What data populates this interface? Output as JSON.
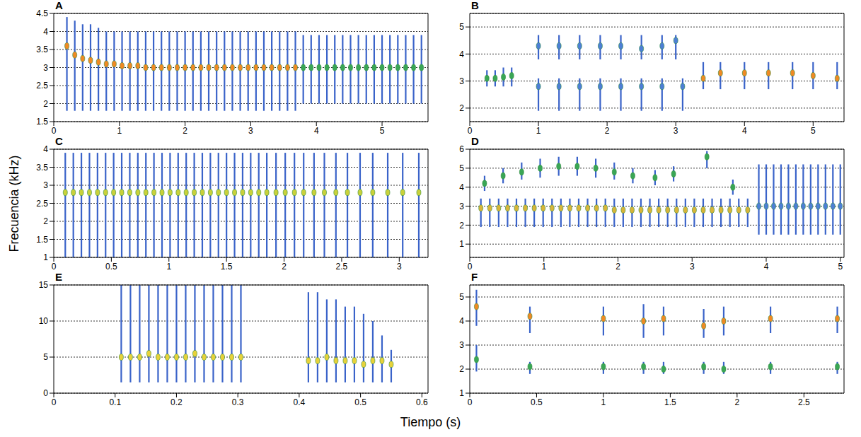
{
  "ylabel": "Frecuencia (kHz)",
  "xlabel": "Tiempo (s)",
  "chart_data": [
    {
      "type": "scatter",
      "title": "A",
      "xlim": [
        0,
        5.7
      ],
      "xticks": [
        0,
        1,
        2,
        3,
        4,
        5
      ],
      "ylim": [
        1.5,
        4.5
      ],
      "yticks": [
        1.5,
        2,
        2.5,
        3,
        3.5,
        4,
        4.5
      ],
      "grid": true,
      "series": [
        {
          "color": "#f08a24",
          "marker": "ellipse",
          "x": [
            0.2,
            0.32,
            0.44,
            0.56,
            0.68,
            0.8,
            0.92,
            1.04,
            1.16,
            1.28,
            1.4,
            1.52,
            1.64,
            1.76,
            1.88,
            2.0,
            2.12,
            2.24,
            2.36,
            2.48,
            2.6,
            2.72,
            2.84,
            2.96,
            3.08,
            3.2,
            3.32,
            3.44,
            3.56,
            3.68
          ],
          "values": [
            3.6,
            3.35,
            3.25,
            3.2,
            3.15,
            3.1,
            3.1,
            3.05,
            3.05,
            3.05,
            3.0,
            3.0,
            3.0,
            3.0,
            3.0,
            3.0,
            3.0,
            3.0,
            3.0,
            3.0,
            3.0,
            3.0,
            3.0,
            3.0,
            3.0,
            3.0,
            3.0,
            3.0,
            3.0,
            3.0
          ],
          "low": [
            1.8,
            1.8,
            1.8,
            1.8,
            1.8,
            1.8,
            1.8,
            1.8,
            1.8,
            1.8,
            1.8,
            1.8,
            1.8,
            1.8,
            1.8,
            1.8,
            1.8,
            1.8,
            1.8,
            1.8,
            1.8,
            1.8,
            1.8,
            1.8,
            1.8,
            1.8,
            1.8,
            1.8,
            1.8,
            1.8
          ],
          "high": [
            4.4,
            4.3,
            4.2,
            4.2,
            4.1,
            4.0,
            4.0,
            4.0,
            4.0,
            4.0,
            4.0,
            4.0,
            4.0,
            4.0,
            4.0,
            4.0,
            4.0,
            4.0,
            4.0,
            4.0,
            4.0,
            4.0,
            4.0,
            4.0,
            4.0,
            4.0,
            4.0,
            4.0,
            4.0,
            4.0
          ]
        },
        {
          "color": "#3aa655",
          "marker": "ellipse",
          "x": [
            3.8,
            3.92,
            4.04,
            4.16,
            4.28,
            4.4,
            4.52,
            4.64,
            4.76,
            4.88,
            5.0,
            5.12,
            5.24,
            5.36,
            5.48,
            5.6
          ],
          "values": [
            3.0,
            3.0,
            3.0,
            3.0,
            3.0,
            3.0,
            3.0,
            3.0,
            3.0,
            3.0,
            3.0,
            3.0,
            3.0,
            3.0,
            3.0,
            3.0
          ],
          "low": [
            2.0,
            2.0,
            2.0,
            2.0,
            2.0,
            2.0,
            2.0,
            2.0,
            2.0,
            2.0,
            2.0,
            2.0,
            2.0,
            2.0,
            2.0,
            2.0
          ],
          "high": [
            3.9,
            3.9,
            3.9,
            3.9,
            3.9,
            3.9,
            3.9,
            3.9,
            3.9,
            3.9,
            3.9,
            3.9,
            3.9,
            3.9,
            3.9,
            3.9
          ]
        }
      ]
    },
    {
      "type": "scatter",
      "title": "B",
      "xlim": [
        0,
        5.45
      ],
      "xticks": [
        0,
        1,
        2,
        3,
        4,
        5
      ],
      "ylim": [
        1.5,
        5.5
      ],
      "yticks": [
        2,
        3,
        4,
        5
      ],
      "grid": true,
      "series": [
        {
          "color": "#3aa655",
          "marker": "ellipse",
          "x": [
            0.25,
            0.37,
            0.49,
            0.61
          ],
          "values": [
            3.1,
            3.1,
            3.15,
            3.2
          ],
          "low": [
            2.8,
            2.8,
            2.8,
            2.8
          ],
          "high": [
            3.4,
            3.4,
            3.5,
            3.5
          ]
        },
        {
          "color": "#4d7fd6",
          "marker": "ellipse",
          "x": [
            1.0,
            1.3,
            1.6,
            1.9,
            2.2,
            2.5,
            2.8,
            3.0
          ],
          "values": [
            4.3,
            4.3,
            4.3,
            4.3,
            4.3,
            4.2,
            4.3,
            4.5
          ],
          "low": [
            3.8,
            3.8,
            3.8,
            3.8,
            3.8,
            3.8,
            3.8,
            3.8
          ],
          "high": [
            4.7,
            4.7,
            4.7,
            4.7,
            4.7,
            4.7,
            4.7,
            4.7
          ]
        },
        {
          "color": "#4d7fd6",
          "marker": "ellipse",
          "x": [
            1.0,
            1.3,
            1.6,
            1.9,
            2.2,
            2.5,
            2.8,
            3.1
          ],
          "values": [
            2.8,
            2.8,
            2.8,
            2.8,
            2.8,
            2.8,
            2.8,
            2.8
          ],
          "low": [
            1.9,
            1.9,
            1.9,
            1.9,
            1.9,
            1.9,
            1.9,
            1.9
          ],
          "high": [
            3.1,
            3.1,
            3.1,
            3.1,
            3.1,
            3.1,
            3.1,
            3.1
          ]
        },
        {
          "color": "#f08a24",
          "marker": "ellipse",
          "x": [
            3.4,
            3.65,
            4.0,
            4.35,
            4.7,
            5.0,
            5.35
          ],
          "values": [
            3.1,
            3.3,
            3.3,
            3.3,
            3.3,
            3.2,
            3.1
          ],
          "low": [
            2.7,
            2.7,
            2.7,
            2.7,
            2.7,
            2.7,
            2.7
          ],
          "high": [
            3.7,
            3.7,
            3.7,
            3.7,
            3.7,
            3.7,
            3.7
          ]
        }
      ]
    },
    {
      "type": "scatter",
      "title": "C",
      "xlim": [
        0,
        3.25
      ],
      "xticks": [
        0,
        0.5,
        1,
        1.5,
        2,
        2.5,
        3
      ],
      "ylim": [
        1,
        4
      ],
      "yticks": [
        1,
        1.5,
        2,
        2.5,
        3,
        3.5,
        4
      ],
      "grid": true,
      "series": [
        {
          "color": "#c9d13b",
          "marker": "ellipse",
          "x": [
            0.1,
            0.17,
            0.24,
            0.31,
            0.38,
            0.45,
            0.52,
            0.59,
            0.66,
            0.73,
            0.8,
            0.87,
            0.94,
            1.01,
            1.08,
            1.15,
            1.22,
            1.29,
            1.36,
            1.43,
            1.5,
            1.57,
            1.64,
            1.71,
            1.78,
            1.85,
            1.93,
            2.01,
            2.09,
            2.17,
            2.26,
            2.35,
            2.45,
            2.55,
            2.66,
            2.77,
            2.9,
            3.03,
            3.17
          ],
          "values": [
            2.8,
            2.8,
            2.8,
            2.8,
            2.8,
            2.8,
            2.8,
            2.8,
            2.8,
            2.8,
            2.8,
            2.8,
            2.8,
            2.8,
            2.8,
            2.8,
            2.8,
            2.8,
            2.8,
            2.8,
            2.8,
            2.8,
            2.8,
            2.8,
            2.8,
            2.8,
            2.8,
            2.8,
            2.8,
            2.8,
            2.8,
            2.8,
            2.8,
            2.8,
            2.8,
            2.8,
            2.8,
            2.8,
            2.8
          ],
          "low": [
            1.0,
            1.0,
            1.0,
            1.0,
            1.0,
            1.0,
            1.0,
            1.0,
            1.0,
            1.0,
            1.0,
            1.0,
            1.0,
            1.0,
            1.0,
            1.0,
            1.0,
            1.0,
            1.0,
            1.0,
            1.0,
            1.0,
            1.0,
            1.0,
            1.0,
            1.0,
            1.0,
            1.0,
            1.0,
            1.0,
            1.0,
            1.0,
            1.0,
            1.0,
            1.0,
            1.0,
            1.0,
            1.0,
            1.0
          ],
          "high": [
            3.9,
            3.9,
            3.9,
            3.9,
            3.9,
            3.9,
            3.9,
            3.9,
            3.9,
            3.9,
            3.9,
            3.9,
            3.9,
            3.9,
            3.9,
            3.9,
            3.9,
            3.9,
            3.9,
            3.9,
            3.9,
            3.9,
            3.9,
            3.9,
            3.9,
            3.9,
            3.9,
            3.9,
            3.9,
            3.9,
            3.9,
            3.9,
            3.9,
            3.9,
            3.9,
            3.9,
            3.9,
            3.9,
            3.9
          ]
        }
      ]
    },
    {
      "type": "scatter",
      "title": "D",
      "xlim": [
        0,
        5.05
      ],
      "xticks": [
        0,
        1,
        2,
        3,
        4,
        5
      ],
      "ylim": [
        0.3,
        6
      ],
      "yticks": [
        1,
        2,
        3,
        4,
        5,
        6
      ],
      "grid": true,
      "series": [
        {
          "color": "#4d7fd6",
          "marker": "ellipse",
          "x": [
            3.9,
            4.0,
            4.1,
            4.2,
            4.3,
            4.4,
            4.5,
            4.6,
            4.7,
            4.8,
            4.9,
            5.0
          ],
          "values": [
            3.0,
            3.0,
            3.0,
            3.0,
            3.0,
            3.0,
            3.0,
            3.0,
            3.0,
            3.0,
            3.0,
            3.0
          ],
          "low": [
            1.5,
            1.5,
            1.5,
            1.5,
            1.5,
            1.5,
            1.5,
            1.5,
            1.5,
            1.5,
            1.5,
            1.5
          ],
          "high": [
            5.2,
            5.2,
            5.2,
            5.2,
            5.2,
            5.2,
            5.2,
            5.2,
            5.2,
            5.2,
            5.2,
            5.2
          ]
        },
        {
          "color": "#3aa655",
          "marker": "ellipse",
          "x": [
            0.2,
            0.45,
            0.7,
            0.95,
            1.2,
            1.45,
            1.7,
            1.95,
            2.2,
            2.5,
            2.75,
            3.2,
            3.55
          ],
          "values": [
            4.2,
            4.6,
            4.8,
            5.0,
            5.1,
            5.1,
            5.0,
            4.8,
            4.6,
            4.5,
            4.7,
            5.6,
            4.0
          ],
          "low": [
            3.8,
            4.2,
            4.4,
            4.5,
            4.6,
            4.6,
            4.5,
            4.4,
            4.2,
            4.1,
            4.3,
            5.0,
            3.6
          ],
          "high": [
            4.6,
            5.0,
            5.3,
            5.5,
            5.6,
            5.6,
            5.5,
            5.3,
            5.0,
            4.9,
            5.1,
            5.9,
            4.4
          ]
        },
        {
          "color": "#d9b53a",
          "marker": "ellipse",
          "x": [
            0.15,
            0.27,
            0.39,
            0.51,
            0.63,
            0.75,
            0.87,
            0.99,
            1.11,
            1.23,
            1.35,
            1.47,
            1.59,
            1.71,
            1.83,
            1.95,
            2.07,
            2.19,
            2.31,
            2.43,
            2.55,
            2.67,
            2.79,
            2.91,
            3.03,
            3.15,
            3.27,
            3.39,
            3.51,
            3.63,
            3.75
          ],
          "values": [
            2.9,
            2.9,
            2.9,
            2.9,
            2.9,
            2.9,
            2.9,
            2.9,
            2.9,
            2.9,
            2.9,
            2.9,
            2.9,
            2.9,
            2.9,
            2.8,
            2.8,
            2.8,
            2.8,
            2.8,
            2.8,
            2.8,
            2.8,
            2.8,
            2.8,
            2.8,
            2.8,
            2.8,
            2.8,
            2.8,
            2.8
          ],
          "low": [
            1.9,
            1.9,
            1.9,
            1.9,
            1.9,
            1.9,
            1.9,
            1.9,
            1.9,
            1.9,
            1.9,
            1.9,
            1.9,
            1.9,
            1.9,
            1.9,
            1.9,
            1.9,
            1.9,
            1.9,
            1.9,
            1.9,
            1.9,
            1.9,
            1.9,
            1.9,
            1.9,
            1.9,
            1.9,
            1.9,
            1.9
          ],
          "high": [
            3.4,
            3.4,
            3.4,
            3.4,
            3.4,
            3.4,
            3.4,
            3.4,
            3.4,
            3.4,
            3.4,
            3.4,
            3.4,
            3.4,
            3.4,
            3.4,
            3.4,
            3.4,
            3.4,
            3.4,
            3.4,
            3.4,
            3.4,
            3.4,
            3.4,
            3.4,
            3.4,
            3.4,
            3.4,
            3.4,
            3.4
          ]
        }
      ]
    },
    {
      "type": "scatter",
      "title": "E",
      "xlim": [
        0,
        0.61
      ],
      "xticks": [
        0,
        0.1,
        0.2,
        0.3,
        0.4,
        0.5,
        0.6
      ],
      "ylim": [
        0,
        15
      ],
      "yticks": [
        0,
        5,
        10,
        15
      ],
      "grid": true,
      "series": [
        {
          "color": "#e8d23a",
          "marker": "ellipse",
          "x": [
            0.11,
            0.125,
            0.14,
            0.155,
            0.17,
            0.185,
            0.2,
            0.215,
            0.23,
            0.245,
            0.26,
            0.275,
            0.29,
            0.305
          ],
          "values": [
            5,
            5,
            5,
            5.5,
            5,
            5,
            5,
            5,
            5.5,
            5,
            5,
            5,
            5,
            5
          ],
          "low": [
            1.5,
            1.5,
            1.5,
            1.5,
            1.5,
            1.5,
            1.5,
            1.5,
            1.5,
            1.5,
            1.5,
            1.5,
            1.5,
            1.5
          ],
          "high": [
            15,
            15,
            15,
            15,
            15,
            15,
            15,
            15,
            15,
            15,
            15,
            15,
            15,
            15
          ]
        },
        {
          "color": "#e8d23a",
          "marker": "ellipse",
          "x": [
            0.415,
            0.43,
            0.445,
            0.46,
            0.475,
            0.49,
            0.505,
            0.52,
            0.535,
            0.55
          ],
          "values": [
            4.5,
            4.5,
            5,
            4.5,
            4.5,
            4.5,
            4,
            4.5,
            4.5,
            4
          ],
          "low": [
            1.5,
            1.5,
            1.5,
            1.5,
            1.5,
            1.5,
            1.5,
            1.5,
            1.5,
            1.5
          ],
          "high": [
            14,
            14,
            13,
            13,
            12,
            12,
            11,
            10,
            8,
            6
          ]
        }
      ]
    },
    {
      "type": "scatter",
      "title": "F",
      "xlim": [
        0,
        2.8
      ],
      "xticks": [
        0,
        0.5,
        1,
        1.5,
        2,
        2.5
      ],
      "ylim": [
        1,
        5.5
      ],
      "yticks": [
        1,
        2,
        3,
        4,
        5
      ],
      "grid": true,
      "series": [
        {
          "color": "#f08a24",
          "marker": "ellipse",
          "x": [
            0.05,
            0.45,
            1.0,
            1.3,
            1.45,
            1.75,
            1.9,
            2.25,
            2.75
          ],
          "values": [
            4.6,
            4.2,
            4.1,
            4.0,
            4.1,
            3.8,
            4.0,
            4.1,
            4.1
          ],
          "low": [
            3.8,
            3.5,
            3.4,
            3.3,
            3.4,
            3.3,
            3.4,
            3.5,
            3.5
          ],
          "high": [
            5.3,
            4.6,
            4.6,
            4.7,
            4.6,
            4.5,
            4.6,
            4.6,
            4.6
          ]
        },
        {
          "color": "#3aa655",
          "marker": "ellipse",
          "x": [
            0.05,
            0.45,
            1.0,
            1.3,
            1.45,
            1.75,
            1.9,
            2.25,
            2.75
          ],
          "values": [
            2.4,
            2.1,
            2.1,
            2.1,
            2.0,
            2.1,
            2.0,
            2.1,
            2.1
          ],
          "low": [
            1.9,
            1.8,
            1.8,
            1.8,
            1.8,
            1.8,
            1.8,
            1.8,
            1.8
          ],
          "high": [
            3.0,
            2.3,
            2.3,
            2.3,
            2.3,
            2.3,
            2.3,
            2.3,
            2.3
          ]
        }
      ]
    }
  ]
}
